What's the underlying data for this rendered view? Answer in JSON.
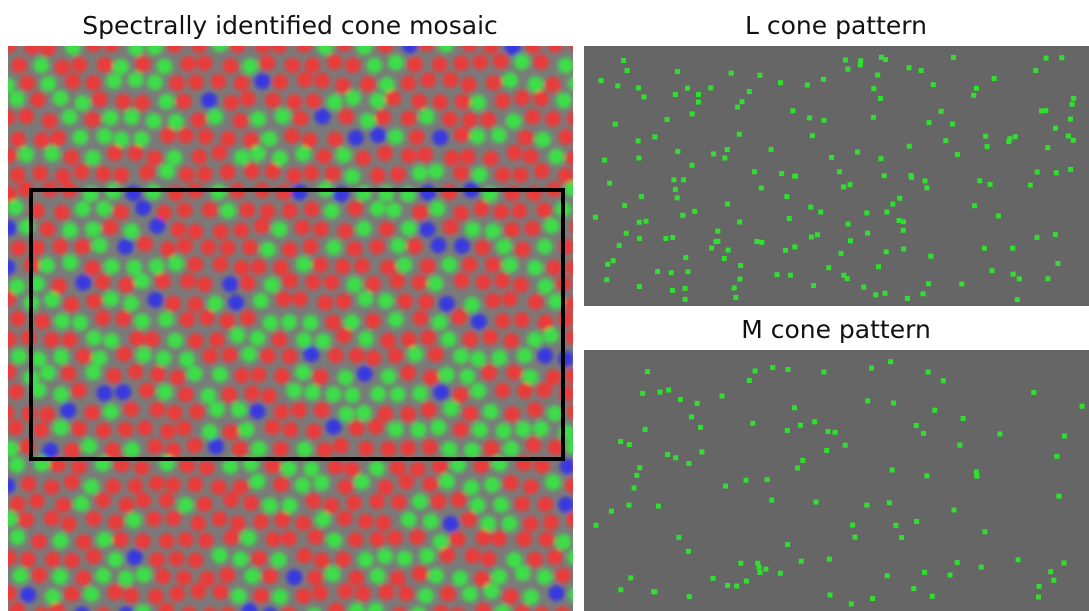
{
  "panels": {
    "mosaic_title": "Spectrally identified cone mosaic",
    "l_title": "L cone pattern",
    "m_title": "M cone pattern"
  }
}
